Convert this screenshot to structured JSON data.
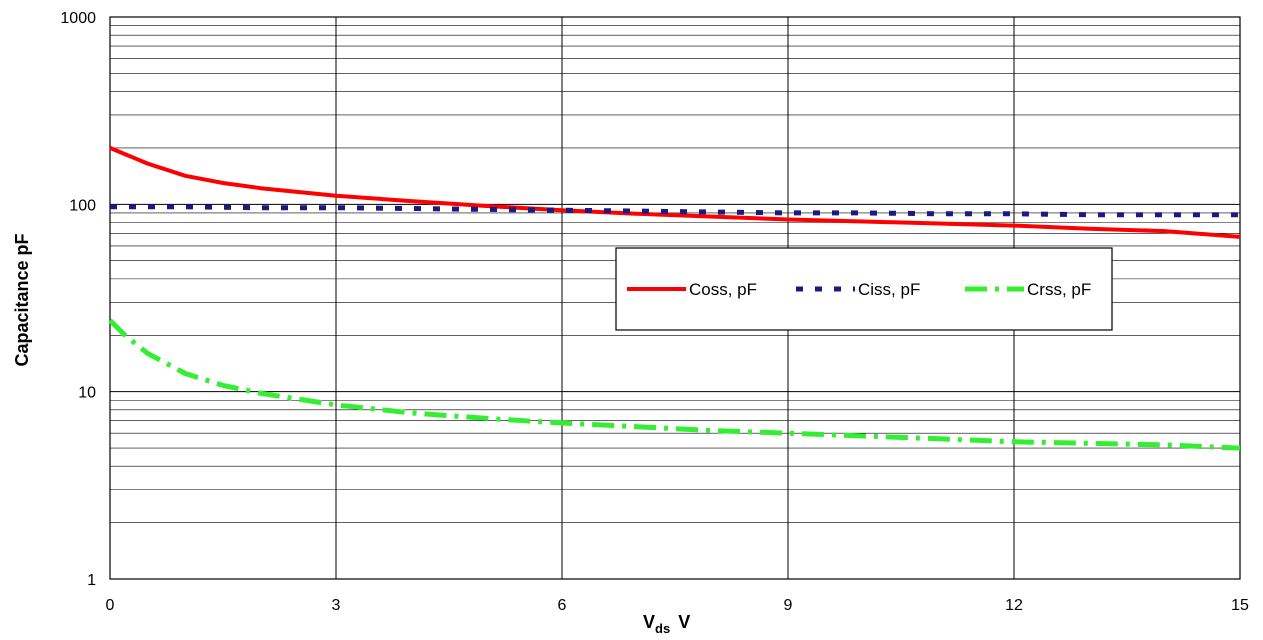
{
  "chart_data": {
    "type": "line",
    "title": "",
    "xlabel": "V",
    "xlabel_sub": "ds",
    "xlabel_unit": "V",
    "ylabel": "Capacitance pF",
    "xlim": [
      0,
      15
    ],
    "ylim": [
      1,
      1000
    ],
    "y_scale": "log",
    "grid": true,
    "x_ticks": [
      0,
      3,
      6,
      9,
      12,
      15
    ],
    "x_tick_labels": [
      "0",
      "3",
      "6",
      "9",
      "12",
      "15"
    ],
    "y_ticks": [
      1,
      10,
      100,
      1000
    ],
    "y_tick_labels": [
      "1",
      "10",
      "100",
      "1000"
    ],
    "legend_position": "right",
    "series": [
      {
        "name": "Coss, pF",
        "color": "#ff0000",
        "style": "solid",
        "x": [
          0,
          0.5,
          1,
          1.5,
          2,
          3,
          4,
          5,
          6,
          7,
          8,
          9,
          10,
          11,
          12,
          13,
          14,
          15
        ],
        "y": [
          200,
          165,
          142,
          130,
          122,
          111,
          104,
          98,
          93,
          89,
          86,
          83,
          81,
          79,
          77,
          74,
          72,
          67
        ]
      },
      {
        "name": "Ciss, pF",
        "color": "#1a1a80",
        "style": "square-dot",
        "x": [
          0,
          1,
          2,
          3,
          4,
          5,
          6,
          7,
          8,
          9,
          10,
          11,
          12,
          13,
          14,
          15
        ],
        "y": [
          97,
          97,
          96,
          96,
          95,
          94,
          93,
          92,
          91,
          90,
          90,
          89,
          89,
          88,
          88,
          88
        ]
      },
      {
        "name": "Crss, pF",
        "color": "#33ee33",
        "style": "dash-dot",
        "x": [
          0,
          0.2,
          0.5,
          1,
          1.5,
          2,
          3,
          4,
          5,
          6,
          7,
          8,
          9,
          10,
          11,
          12,
          13,
          14,
          15
        ],
        "y": [
          24,
          20,
          16,
          12.5,
          10.8,
          9.8,
          8.5,
          7.7,
          7.2,
          6.8,
          6.5,
          6.2,
          6.0,
          5.8,
          5.6,
          5.4,
          5.3,
          5.2,
          5.0
        ]
      }
    ]
  }
}
